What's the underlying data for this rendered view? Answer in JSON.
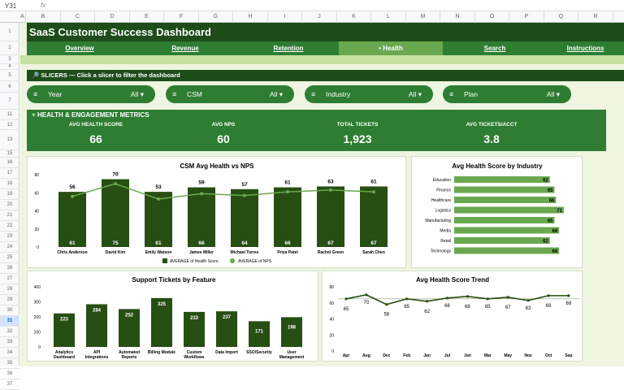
{
  "formula_bar": {
    "cell_ref": "Y31",
    "fx": "fx"
  },
  "columns": [
    "A",
    "B",
    "C",
    "D",
    "E",
    "F",
    "G",
    "H",
    "I",
    "J",
    "K",
    "L",
    "M",
    "N",
    "O",
    "P",
    "Q",
    "R"
  ],
  "rows": [
    "1",
    "2",
    "3",
    "4",
    "5",
    "6",
    "7",
    "11",
    "12",
    "13",
    "15",
    "16",
    "17",
    "18",
    "19",
    "20",
    "21",
    "22",
    "23",
    "24",
    "25",
    "26",
    "27",
    "28",
    "29",
    "30",
    "31",
    "32",
    "33",
    "34",
    "35",
    "36",
    "37"
  ],
  "selected_row": "31",
  "header": {
    "title": "SaaS Customer Success Dashboard"
  },
  "nav": [
    {
      "label": "Overview"
    },
    {
      "label": "Revenue"
    },
    {
      "label": "Retention"
    },
    {
      "label": "• Health",
      "active": true
    },
    {
      "label": "Search"
    },
    {
      "label": "Instructions"
    }
  ],
  "slicers": {
    "header": "🔎 SLICERS — Click a slicer to filter the dashboard",
    "items": [
      {
        "label": "Year",
        "value": "All ▾"
      },
      {
        "label": "CSM",
        "value": "All ▾"
      },
      {
        "label": "Industry",
        "value": "All ▾"
      },
      {
        "label": "Plan",
        "value": "All ▾"
      }
    ]
  },
  "kpis": {
    "header": "HEALTH & ENGAGEMENT METRICS",
    "items": [
      {
        "label": "AVG HEALTH SCORE",
        "value": "66"
      },
      {
        "label": "AVG NPS",
        "value": "60"
      },
      {
        "label": "TOTAL TICKETS",
        "value": "1,923"
      },
      {
        "label": "AVG TICKETS/ACCT",
        "value": "3.8"
      }
    ]
  },
  "colors": {
    "dark_green": "#1e4d1a",
    "green": "#2e7d32",
    "light_green": "#6aa84f",
    "bar_dark": "#274e13",
    "bg": "#eef5e0"
  },
  "chart_data": [
    {
      "type": "bar+line",
      "title": "CSM Avg Health vs NPS",
      "categories": [
        "Chris Anderson",
        "David Kim",
        "Emily Watson",
        "James Miller",
        "Michael Torres",
        "Priya Patel",
        "Rachel Green",
        "Sarah Chen"
      ],
      "series": [
        {
          "name": "AVERAGE of Health Score",
          "type": "bar",
          "values": [
            61,
            75,
            61,
            66,
            64,
            66,
            67,
            67
          ]
        },
        {
          "name": "AVERAGE of NPS",
          "type": "line",
          "values": [
            56,
            70,
            53,
            59,
            57,
            61,
            63,
            61
          ]
        }
      ],
      "yticks": [
        "0",
        "20",
        "40",
        "60",
        "80"
      ],
      "ylim": [
        0,
        80
      ],
      "legend": "bottom"
    },
    {
      "type": "bar",
      "orientation": "horizontal",
      "title": "Avg Health Score by Industry",
      "categories": [
        "Education",
        "Finance",
        "Healthcare",
        "Logistics",
        "Manufacturing",
        "Media",
        "Retail",
        "Technology"
      ],
      "values": [
        62,
        65,
        66,
        71,
        65,
        68,
        62,
        68
      ]
    },
    {
      "type": "bar",
      "title": "Support Tickets by Feature",
      "categories": [
        "Analytics Dashboard",
        "API Integrations",
        "Automated Reports",
        "Billing Module",
        "Custom Workflows",
        "Data Import",
        "SSO/Security",
        "User Management"
      ],
      "values": [
        223,
        284,
        252,
        325,
        233,
        237,
        171,
        198
      ],
      "yticks": [
        "0",
        "100",
        "200",
        "300",
        "400"
      ],
      "ylim": [
        0,
        400
      ]
    },
    {
      "type": "line",
      "title": "Avg Health Score Trend",
      "categories": [
        "Apr",
        "Aug",
        "Dec",
        "Feb",
        "Jan",
        "Jul",
        "Jun",
        "Mar",
        "May",
        "Nov",
        "Oct",
        "Sep"
      ],
      "values": [
        65,
        70,
        58,
        65,
        62,
        66,
        68,
        65,
        67,
        63,
        69,
        69
      ],
      "yticks": [
        "0",
        "20",
        "40",
        "60",
        "80"
      ],
      "ylim": [
        0,
        80
      ]
    }
  ]
}
